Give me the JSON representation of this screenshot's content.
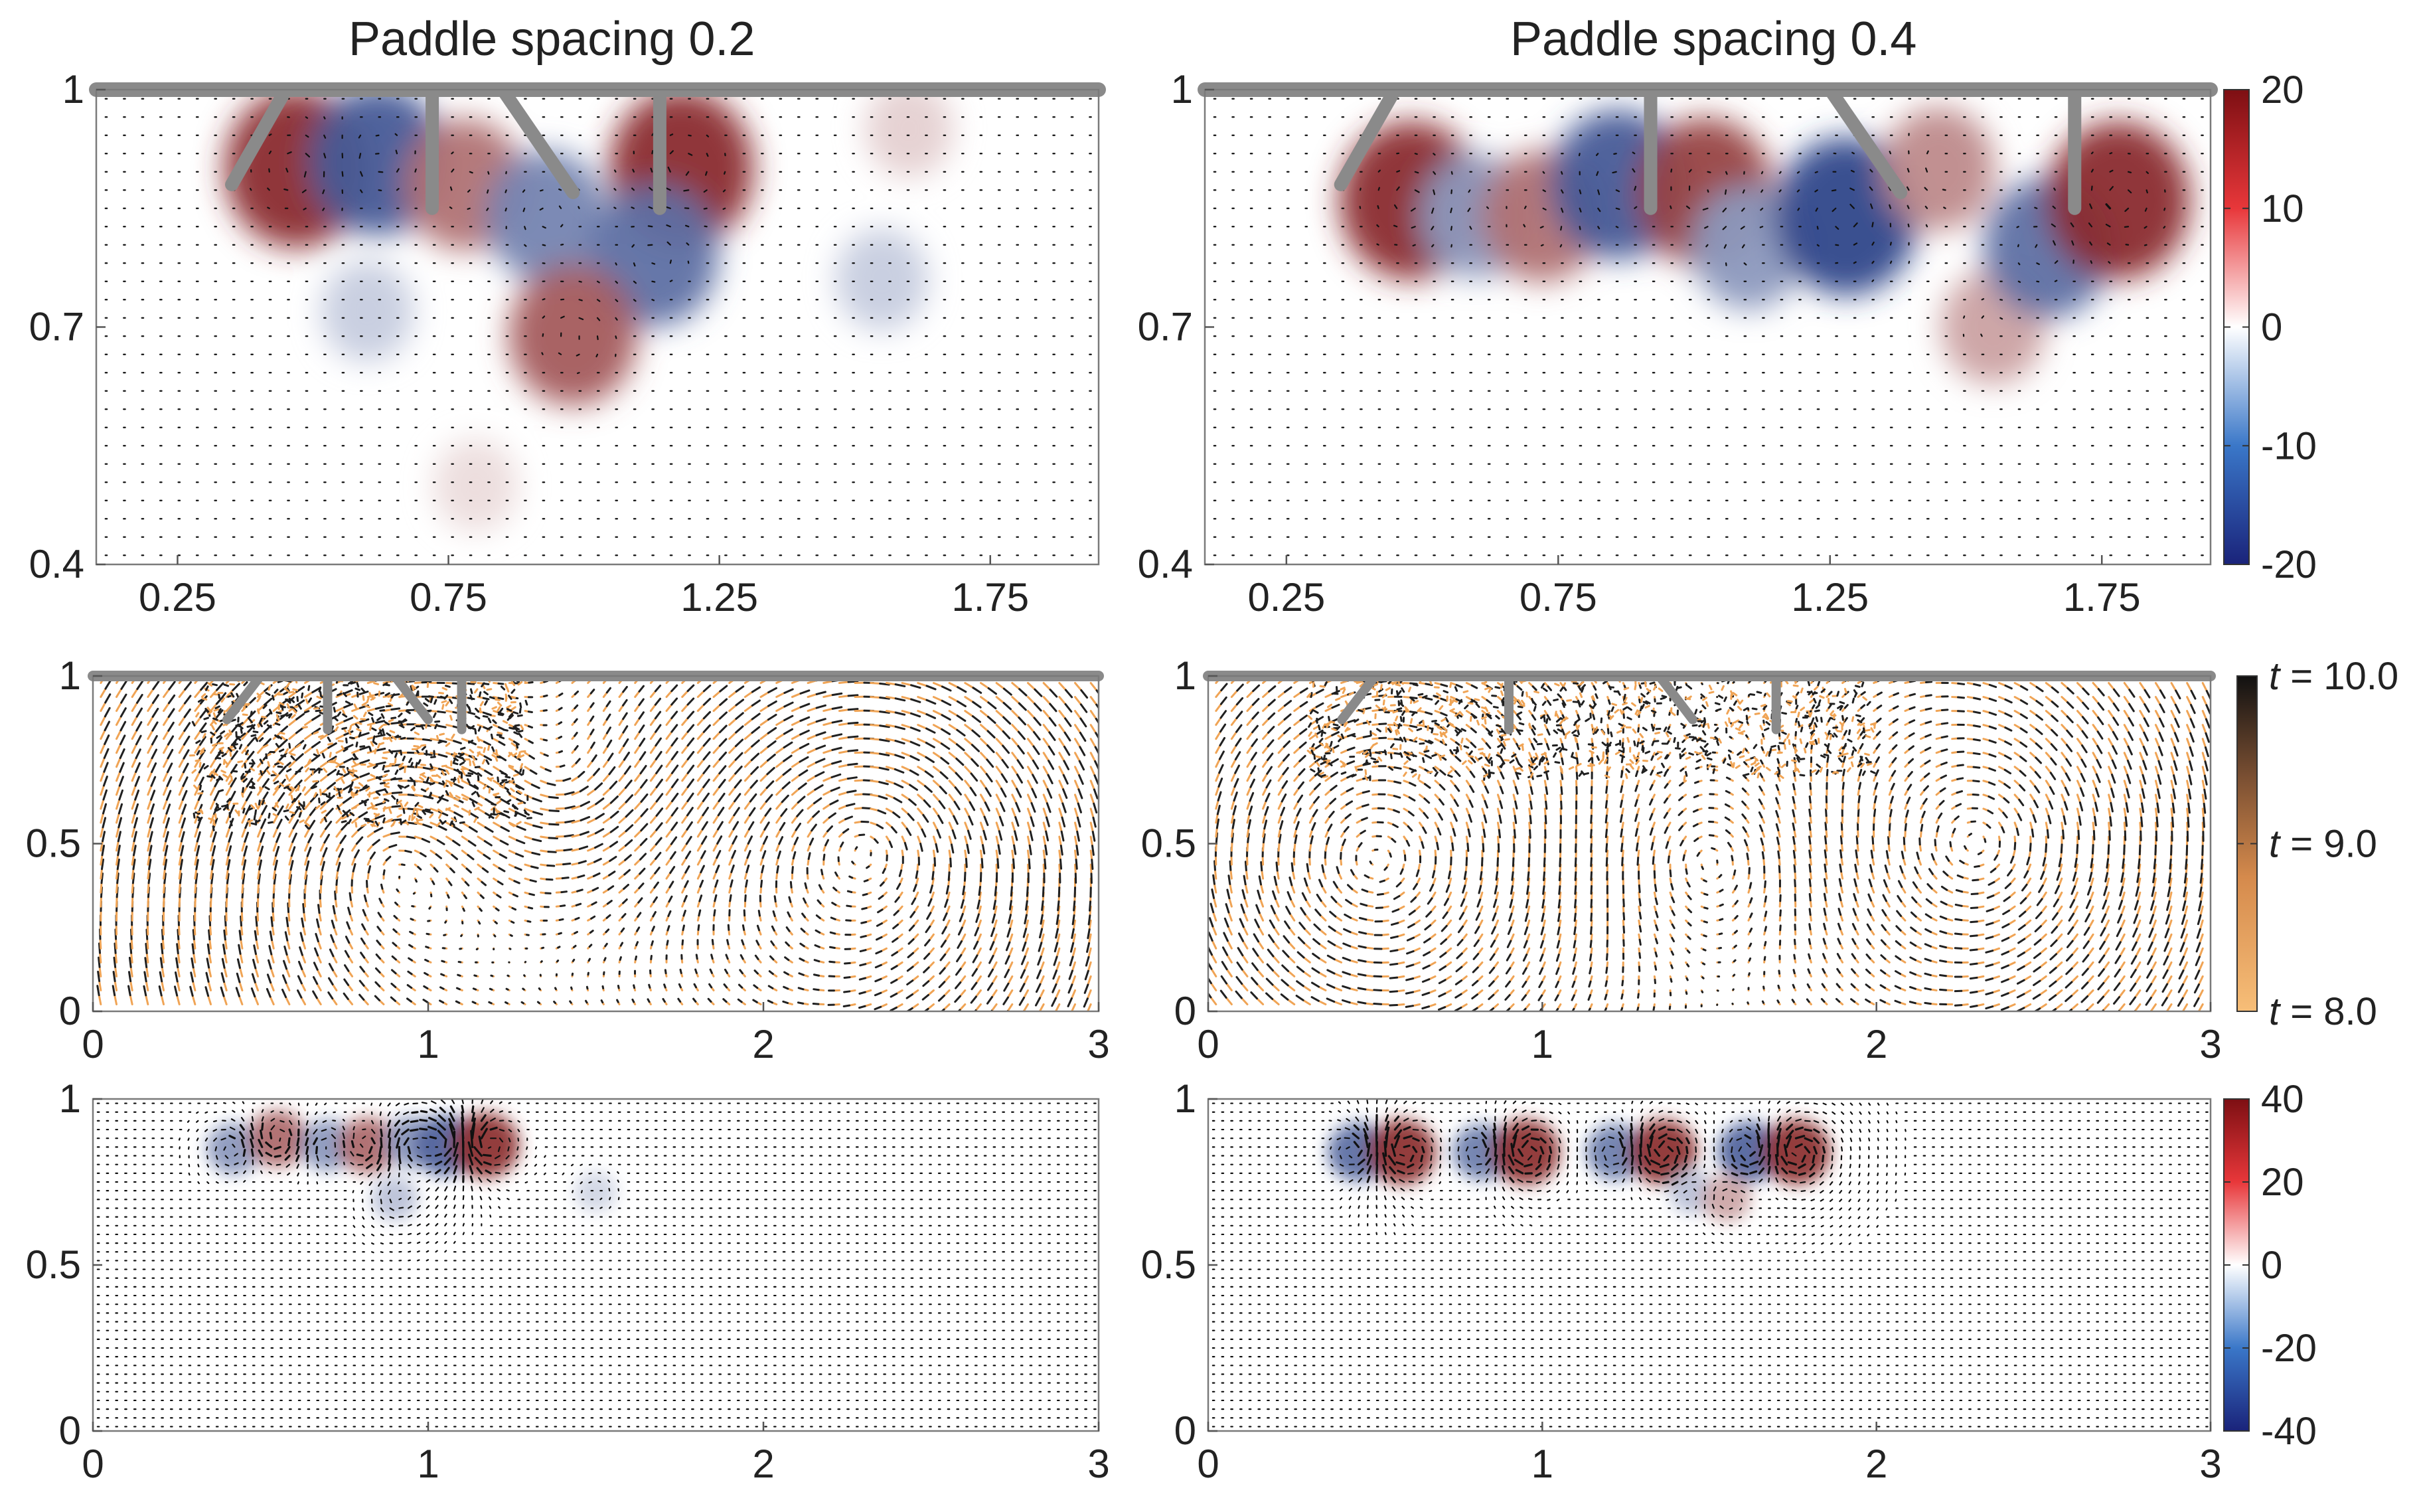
{
  "titles": {
    "left": "Paddle spacing 0.2",
    "right": "Paddle spacing 0.4"
  },
  "chart_data": [
    {
      "type": "heatmap",
      "name": "vorticity-zoom-spacing-0.2",
      "title": "Paddle spacing 0.2",
      "xlim": [
        0.1,
        1.95
      ],
      "ylim": [
        0.4,
        1.0
      ],
      "xticks": [
        "0.25",
        "0.75",
        "1.25",
        "1.75"
      ],
      "xtick_values": [
        0.25,
        0.75,
        1.25,
        1.75
      ],
      "yticks": [
        "0.4",
        "0.7",
        "1"
      ],
      "ytick_values": [
        0.4,
        0.7,
        1.0
      ],
      "paddles": [
        {
          "x1": 0.35,
          "y1": 0.88,
          "x2": 0.45,
          "y2": 1.0
        },
        {
          "x1": 0.72,
          "y1": 0.85,
          "x2": 0.72,
          "y2": 1.0
        },
        {
          "x1": 0.85,
          "y1": 1.0,
          "x2": 0.98,
          "y2": 0.87
        },
        {
          "x1": 1.14,
          "y1": 0.85,
          "x2": 1.14,
          "y2": 1.0
        }
      ],
      "vortices": [
        {
          "x": 0.47,
          "y": 0.9,
          "value": 18
        },
        {
          "x": 0.62,
          "y": 0.91,
          "value": -16
        },
        {
          "x": 0.78,
          "y": 0.88,
          "value": 12
        },
        {
          "x": 0.93,
          "y": 0.84,
          "value": -12
        },
        {
          "x": 1.18,
          "y": 0.9,
          "value": 18
        },
        {
          "x": 1.13,
          "y": 0.79,
          "value": -14
        },
        {
          "x": 0.98,
          "y": 0.69,
          "value": 14
        },
        {
          "x": 0.6,
          "y": 0.72,
          "value": -5
        },
        {
          "x": 1.55,
          "y": 0.76,
          "value": -5
        },
        {
          "x": 1.6,
          "y": 0.95,
          "value": 4
        },
        {
          "x": 0.8,
          "y": 0.5,
          "value": 3
        }
      ]
    },
    {
      "type": "heatmap",
      "name": "vorticity-zoom-spacing-0.4",
      "title": "Paddle spacing 0.4",
      "xlim": [
        0.1,
        1.95
      ],
      "ylim": [
        0.4,
        1.0
      ],
      "xticks": [
        "0.25",
        "0.75",
        "1.25",
        "1.75"
      ],
      "xtick_values": [
        0.25,
        0.75,
        1.25,
        1.75
      ],
      "yticks": [
        "0.4",
        "0.7",
        "1"
      ],
      "ytick_values": [
        0.4,
        0.7,
        1.0
      ],
      "paddles": [
        {
          "x1": 0.35,
          "y1": 0.88,
          "x2": 0.45,
          "y2": 1.0
        },
        {
          "x1": 0.92,
          "y1": 0.85,
          "x2": 0.92,
          "y2": 1.0
        },
        {
          "x1": 1.25,
          "y1": 1.0,
          "x2": 1.38,
          "y2": 0.87
        },
        {
          "x1": 1.7,
          "y1": 0.85,
          "x2": 1.7,
          "y2": 1.0
        }
      ],
      "vortices": [
        {
          "x": 0.48,
          "y": 0.86,
          "value": 18
        },
        {
          "x": 0.6,
          "y": 0.84,
          "value": -10
        },
        {
          "x": 0.72,
          "y": 0.84,
          "value": 12
        },
        {
          "x": 0.86,
          "y": 0.88,
          "value": -16
        },
        {
          "x": 1.02,
          "y": 0.87,
          "value": 16
        },
        {
          "x": 1.1,
          "y": 0.8,
          "value": -10
        },
        {
          "x": 1.28,
          "y": 0.84,
          "value": -18
        },
        {
          "x": 1.45,
          "y": 0.9,
          "value": 10
        },
        {
          "x": 1.55,
          "y": 0.7,
          "value": 8
        },
        {
          "x": 1.65,
          "y": 0.8,
          "value": -14
        },
        {
          "x": 1.78,
          "y": 0.86,
          "value": 18
        }
      ]
    },
    {
      "type": "scatter",
      "name": "trajectories-spacing-0.2",
      "xlim": [
        0,
        3
      ],
      "ylim": [
        0,
        1
      ],
      "xticks": [
        "0",
        "1",
        "2",
        "3"
      ],
      "xtick_values": [
        0,
        1,
        2,
        3
      ],
      "yticks": [
        "0",
        "0.5",
        "1"
      ],
      "ytick_values": [
        0,
        0.5,
        1.0
      ],
      "paddles": [
        {
          "x1": 0.4,
          "y1": 0.87,
          "x2": 0.5,
          "y2": 1.0
        },
        {
          "x1": 0.7,
          "y1": 0.84,
          "x2": 0.7,
          "y2": 1.0
        },
        {
          "x1": 0.9,
          "y1": 1.0,
          "x2": 1.0,
          "y2": 0.87
        },
        {
          "x1": 1.1,
          "y1": 0.84,
          "x2": 1.1,
          "y2": 1.0
        }
      ],
      "dense_region": {
        "x": [
          0.3,
          1.3
        ],
        "y": [
          0.55,
          1.0
        ]
      },
      "eddies": [
        {
          "x": 0.9,
          "y": 0.45,
          "r": 0.4
        },
        {
          "x": 1.4,
          "y": 0.7,
          "r": 0.35
        },
        {
          "x": 2.3,
          "y": 0.5,
          "r": 0.45
        }
      ]
    },
    {
      "type": "scatter",
      "name": "trajectories-spacing-0.4",
      "xlim": [
        0,
        3
      ],
      "ylim": [
        0,
        1
      ],
      "xticks": [
        "0",
        "1",
        "2",
        "3"
      ],
      "xtick_values": [
        0,
        1,
        2,
        3
      ],
      "yticks": [
        "0",
        "0.5",
        "1"
      ],
      "ytick_values": [
        0,
        0.5,
        1.0
      ],
      "paddles": [
        {
          "x1": 0.4,
          "y1": 0.87,
          "x2": 0.5,
          "y2": 1.0
        },
        {
          "x1": 0.9,
          "y1": 0.84,
          "x2": 0.9,
          "y2": 1.0
        },
        {
          "x1": 1.35,
          "y1": 1.0,
          "x2": 1.45,
          "y2": 0.87
        },
        {
          "x1": 1.7,
          "y1": 0.84,
          "x2": 1.7,
          "y2": 1.0
        }
      ],
      "dense_region": {
        "x": [
          0.3,
          2.0
        ],
        "y": [
          0.7,
          1.0
        ]
      },
      "eddies": [
        {
          "x": 0.5,
          "y": 0.45,
          "r": 0.35
        },
        {
          "x": 1.5,
          "y": 0.45,
          "r": 0.35
        },
        {
          "x": 2.3,
          "y": 0.5,
          "r": 0.45
        }
      ]
    },
    {
      "type": "heatmap",
      "name": "vorticity-full-spacing-0.2",
      "xlim": [
        0,
        3
      ],
      "ylim": [
        0,
        1
      ],
      "xticks": [
        "0",
        "1",
        "2",
        "3"
      ],
      "xtick_values": [
        0,
        1,
        2,
        3
      ],
      "yticks": [
        "0",
        "0.5",
        "1"
      ],
      "ytick_values": [
        0,
        0.5,
        1.0
      ],
      "vortices": [
        {
          "x": 0.42,
          "y": 0.85,
          "value": -20
        },
        {
          "x": 0.55,
          "y": 0.88,
          "value": 25
        },
        {
          "x": 0.7,
          "y": 0.86,
          "value": -20
        },
        {
          "x": 0.82,
          "y": 0.86,
          "value": 25
        },
        {
          "x": 0.95,
          "y": 0.87,
          "value": -20
        },
        {
          "x": 1.05,
          "y": 0.86,
          "value": -30
        },
        {
          "x": 1.17,
          "y": 0.86,
          "value": 35
        },
        {
          "x": 0.9,
          "y": 0.7,
          "value": -12
        },
        {
          "x": 1.5,
          "y": 0.72,
          "value": -8
        }
      ]
    },
    {
      "type": "heatmap",
      "name": "vorticity-full-spacing-0.4",
      "xlim": [
        0,
        3
      ],
      "ylim": [
        0,
        1
      ],
      "xticks": [
        "0",
        "1",
        "2",
        "3"
      ],
      "xtick_values": [
        0,
        1,
        2,
        3
      ],
      "yticks": [
        "0",
        "0.5",
        "1"
      ],
      "ytick_values": [
        0,
        0.5,
        1.0
      ],
      "vortices": [
        {
          "x": 0.45,
          "y": 0.84,
          "value": -28
        },
        {
          "x": 0.58,
          "y": 0.84,
          "value": 35
        },
        {
          "x": 0.82,
          "y": 0.84,
          "value": -25
        },
        {
          "x": 0.95,
          "y": 0.84,
          "value": 35
        },
        {
          "x": 1.22,
          "y": 0.84,
          "value": -25
        },
        {
          "x": 1.36,
          "y": 0.84,
          "value": 35
        },
        {
          "x": 1.62,
          "y": 0.84,
          "value": -30
        },
        {
          "x": 1.76,
          "y": 0.84,
          "value": 35
        },
        {
          "x": 1.45,
          "y": 0.72,
          "value": -12
        },
        {
          "x": 1.55,
          "y": 0.7,
          "value": 15
        }
      ]
    }
  ],
  "colorbars": {
    "top": {
      "ticks": [
        "20",
        "10",
        "0",
        "-10",
        "-20"
      ],
      "range": [
        -20,
        20
      ]
    },
    "middle": {
      "labels": [
        {
          "var": "t",
          "text": " = 10.0"
        },
        {
          "var": "t",
          "text": " = 9.0"
        },
        {
          "var": "t",
          "text": " = 8.0"
        }
      ]
    },
    "bottom": {
      "ticks": [
        "40",
        "20",
        "0",
        "-20",
        "-40"
      ],
      "range": [
        -40,
        40
      ]
    }
  },
  "colors": {
    "red": "#a01419",
    "blue": "#1b2a80",
    "white": "#ffffff",
    "paddle": "#8a8a8a",
    "arrow": "#111111",
    "orange": "#f0a455",
    "dark": "#202020"
  }
}
